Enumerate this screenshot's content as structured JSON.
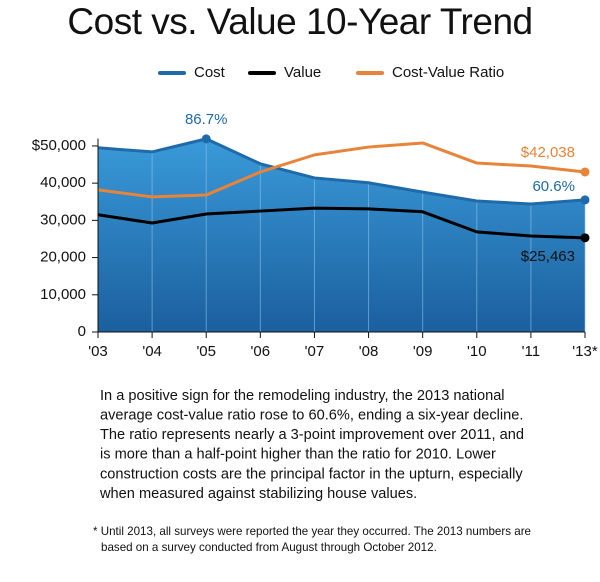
{
  "chart_data": {
    "type": "area-line",
    "title": "Cost vs. Value 10-Year Trend",
    "categories": [
      "'03",
      "'04",
      "'05",
      "'06",
      "'07",
      "'08",
      "'09",
      "'10",
      "'11",
      "'13*"
    ],
    "series": [
      {
        "name": "Cost",
        "color": "#1f6aa8",
        "kind": "area",
        "values": [
          49500,
          48400,
          51900,
          45200,
          41400,
          40100,
          37600,
          35200,
          34400,
          35500
        ]
      },
      {
        "name": "Value",
        "color": "#000000",
        "kind": "line",
        "values": [
          31500,
          29300,
          31700,
          32500,
          33300,
          33100,
          32300,
          26900,
          25800,
          25300
        ]
      },
      {
        "name": "Cost-Value Ratio",
        "color": "#e8833a",
        "kind": "line",
        "values": [
          38200,
          36300,
          36800,
          43000,
          47600,
          49700,
          50800,
          45400,
          44600,
          43000
        ]
      }
    ],
    "ylim": [
      0,
      52000
    ],
    "yticks": [
      0,
      {
        "value": 10000,
        "label": "10,000"
      },
      {
        "value": 20000,
        "label": "20,000"
      },
      {
        "value": 30000,
        "label": "30,000"
      },
      {
        "value": 40000,
        "label": "40,000"
      },
      {
        "value": 50000,
        "label": "$50,000"
      }
    ],
    "annotations": [
      "86.7%",
      "$42,038",
      "60.6%",
      "$25,463"
    ],
    "caption": [
      "In a positive sign for the remodeling industry, the 2013 national",
      "average cost-value ratio rose to 60.6%, ending a six-year decline.",
      "The ratio represents nearly a 3-point improvement over 2011, and",
      "is more than a half-point higher than the ratio for 2010. Lower",
      "construction costs are the principal factor in the upturn, especially",
      "when measured against stabilizing house values."
    ],
    "footnote": [
      "* Until 2013, all surveys were reported the year they occurred. The 2013 numbers are",
      "based on a survey conducted from August through October 2012."
    ]
  }
}
